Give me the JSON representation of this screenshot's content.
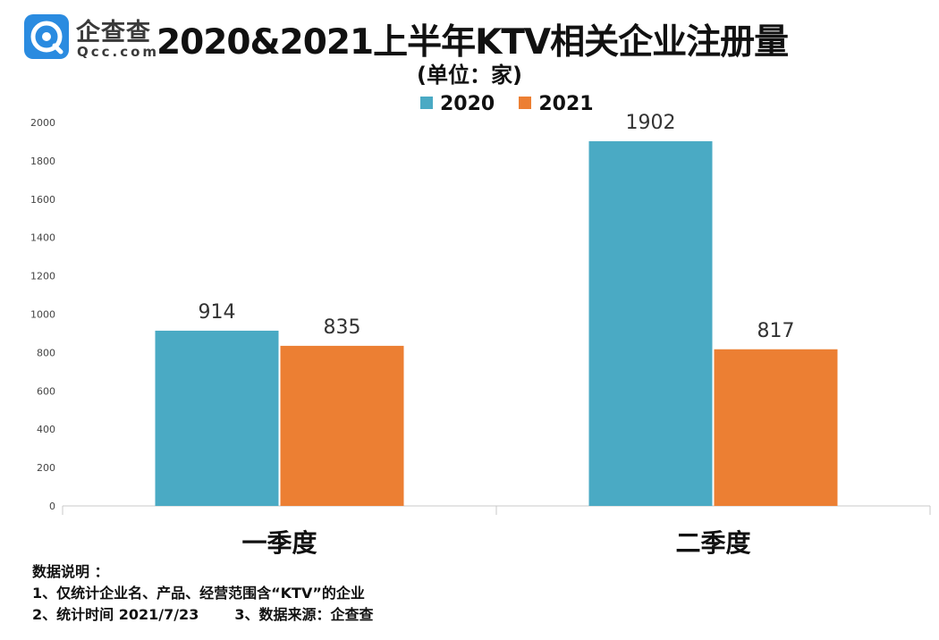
{
  "logo": {
    "name_cn": "企查查",
    "name_en": "Qcc.com",
    "icon": "magnifier-q-icon",
    "color": "#2a8be0"
  },
  "title": "2020&2021上半年KTV相关企业注册量",
  "subtitle": "(单位：家)",
  "legend": [
    {
      "label": "2020",
      "color": "#4aaac4"
    },
    {
      "label": "2021",
      "color": "#ec7f33"
    }
  ],
  "chart_data": {
    "type": "bar",
    "categories": [
      "一季度",
      "二季度"
    ],
    "series": [
      {
        "name": "2020",
        "values": [
          914,
          1902
        ],
        "color": "#4aaac4"
      },
      {
        "name": "2021",
        "values": [
          835,
          817
        ],
        "color": "#ec7f33"
      }
    ],
    "ylim": [
      0,
      2000
    ],
    "yticks": [
      "0",
      "200",
      "400",
      "600",
      "800",
      "1000",
      "1200",
      "1400",
      "1600",
      "1800",
      "2000"
    ],
    "data_labels": [
      [
        "914",
        "1902"
      ],
      [
        "835",
        "817"
      ]
    ],
    "grid": false,
    "legend_position": "top-center"
  },
  "notes": {
    "heading": "数据说明 ：",
    "line1": "1、仅统计企业名、产品、经营范围含“KTV”的企业",
    "line2a": "2、统计时间 2021/7/23",
    "line2b": "3、数据来源：企查查"
  }
}
